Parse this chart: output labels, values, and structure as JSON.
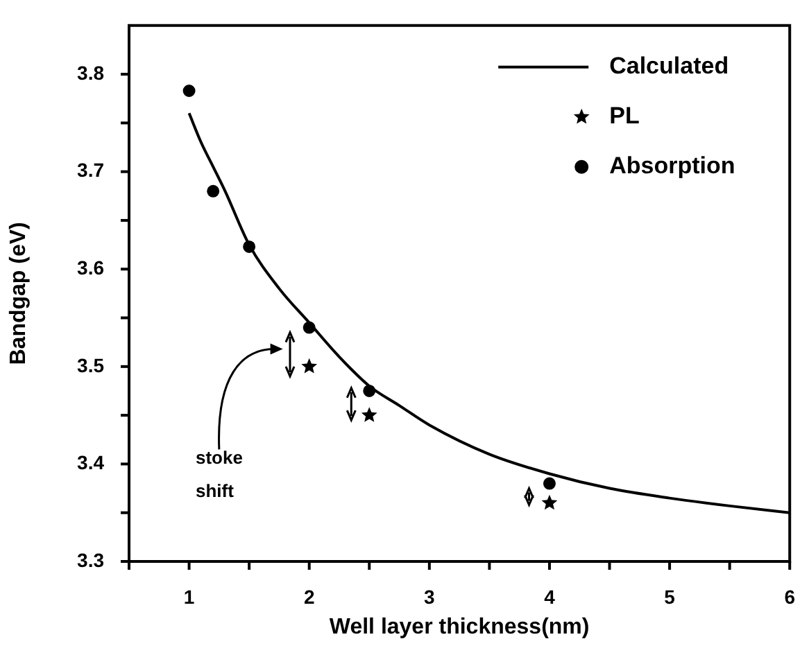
{
  "chart_data": {
    "type": "scatter",
    "xlabel": "Well layer thickness(nm)",
    "ylabel": "Bandgap (eV)",
    "xlim": [
      0.5,
      6
    ],
    "xticks": [
      {
        "value": 0.5,
        "label": null
      },
      1,
      {
        "value": 1.5,
        "label": null
      },
      2,
      {
        "value": 2.5,
        "label": null
      },
      3,
      {
        "value": 3.5,
        "label": null
      },
      4,
      {
        "value": 4.5,
        "label": null
      },
      5,
      {
        "value": 5.5,
        "label": null
      },
      6
    ],
    "ylim": [
      3.3,
      3.85
    ],
    "yticks": [
      3.3,
      {
        "value": 3.35,
        "label": null
      },
      3.4,
      {
        "value": 3.45,
        "label": null
      },
      3.5,
      {
        "value": 3.55,
        "label": null
      },
      3.6,
      {
        "value": 3.65,
        "label": null
      },
      3.7,
      {
        "value": 3.75,
        "label": null
      },
      3.8
    ],
    "grid": false,
    "legend": "top right",
    "annotations": [
      "stoke\nshift"
    ],
    "series": [
      {
        "name": "Calculated",
        "type": "line",
        "marker": "none",
        "color": "#000000",
        "x": [
          1,
          1.1,
          1.2,
          1.3,
          1.5,
          1.75,
          2,
          2.25,
          2.5,
          2.75,
          3,
          3.5,
          4,
          4.5,
          5,
          5.5,
          6
        ],
        "values": [
          3.76,
          3.73,
          3.705,
          3.68,
          3.625,
          3.58,
          3.545,
          3.51,
          3.48,
          3.46,
          3.44,
          3.41,
          3.39,
          3.375,
          3.365,
          3.357,
          3.35
        ]
      },
      {
        "name": "PL",
        "type": "scatter",
        "marker": "star",
        "color": "#000000",
        "x": [
          2,
          2.5,
          4
        ],
        "values": [
          3.5,
          3.45,
          3.36
        ]
      },
      {
        "name": "Absorption",
        "type": "scatter",
        "marker": "circle",
        "color": "#000000",
        "x": [
          1,
          1.2,
          1.5,
          2,
          2.5,
          4
        ],
        "values": [
          3.783,
          3.68,
          3.623,
          3.54,
          3.475,
          3.38
        ]
      }
    ]
  }
}
